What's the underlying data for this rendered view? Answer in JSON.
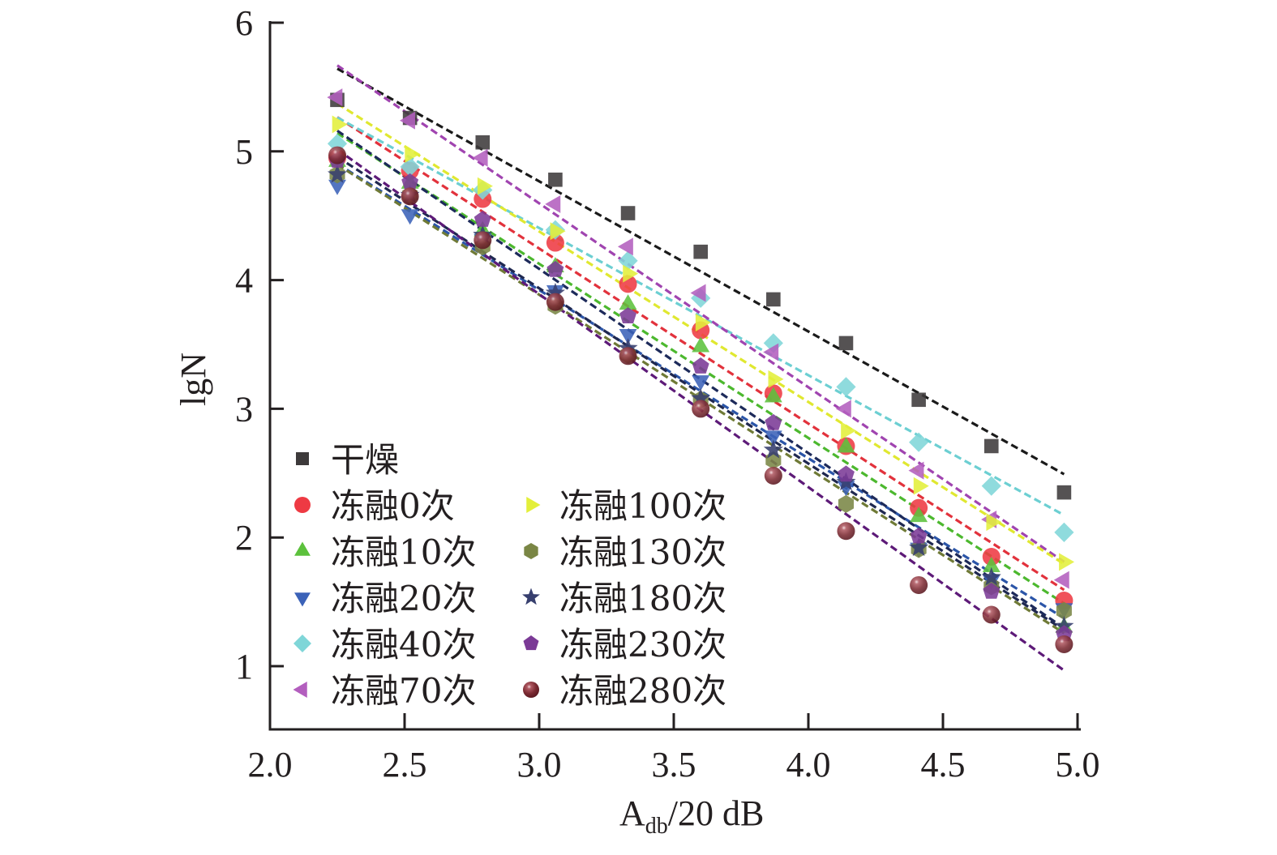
{
  "chart_data": {
    "type": "scatter",
    "title": "",
    "xlabel": "A",
    "xlabel_sub": "db",
    "xlabel_suffix": "/20 dB",
    "ylabel": "lgN",
    "xlim": [
      2.0,
      5.0
    ],
    "ylim": [
      0.5,
      6.0
    ],
    "xticks": [
      "2.0",
      "2.5",
      "3.0",
      "3.5",
      "4.0",
      "4.5",
      "5.0"
    ],
    "xtick_values": [
      2.0,
      2.5,
      3.0,
      3.5,
      4.0,
      4.5,
      5.0
    ],
    "yticks": [
      "1",
      "2",
      "3",
      "4",
      "5",
      "6"
    ],
    "ytick_values": [
      1,
      2,
      3,
      4,
      5,
      6
    ],
    "grid": false,
    "legend_position": "bottom-left",
    "fit_lines": "linear, dashed, one per series",
    "x": [
      2.25,
      2.52,
      2.79,
      3.06,
      3.33,
      3.6,
      3.87,
      4.14,
      4.41,
      4.68,
      4.95
    ],
    "series": [
      {
        "name": "干燥",
        "marker": "square",
        "color": "#3d3a3b",
        "line_color": "#1a1a1a",
        "values": [
          5.4,
          5.26,
          5.07,
          4.78,
          4.52,
          4.22,
          3.85,
          3.51,
          3.07,
          2.71,
          2.35
        ]
      },
      {
        "name": "冻融0次",
        "marker": "circle",
        "color": "#ee3a43",
        "line_color": "#e2323c",
        "values": [
          4.95,
          4.85,
          4.63,
          4.29,
          3.97,
          3.61,
          3.12,
          2.71,
          2.23,
          1.85,
          1.51
        ]
      },
      {
        "name": "冻融10次",
        "marker": "triangle-up",
        "color": "#5cc13c",
        "line_color": "#4cb82e",
        "values": [
          4.92,
          4.75,
          4.38,
          4.1,
          3.81,
          3.48,
          3.09,
          2.7,
          2.16,
          1.77,
          1.3
        ]
      },
      {
        "name": "冻融20次",
        "marker": "triangle-down",
        "color": "#3b62b8",
        "line_color": "#2b55a8",
        "values": [
          4.74,
          4.51,
          4.32,
          3.92,
          3.58,
          3.22,
          2.79,
          2.4,
          1.92,
          1.67,
          1.45
        ]
      },
      {
        "name": "冻融40次",
        "marker": "diamond",
        "color": "#7fd6d8",
        "line_color": "#6ccfd2",
        "values": [
          5.06,
          4.88,
          4.7,
          4.39,
          4.15,
          3.86,
          3.51,
          3.17,
          2.74,
          2.4,
          2.04
        ]
      },
      {
        "name": "冻融70次",
        "marker": "triangle-left",
        "color": "#b35ebe",
        "line_color": "#a044b0",
        "values": [
          5.42,
          5.24,
          4.95,
          4.59,
          4.26,
          3.9,
          3.44,
          3.0,
          2.52,
          2.14,
          1.67
        ]
      },
      {
        "name": "冻融100次",
        "marker": "triangle-right",
        "color": "#e3ef3a",
        "line_color": "#e0e830",
        "values": [
          5.21,
          4.98,
          4.73,
          4.38,
          4.05,
          3.67,
          3.23,
          2.83,
          2.4,
          2.12,
          1.81
        ]
      },
      {
        "name": "冻融130次",
        "marker": "hexagon",
        "color": "#7a8645",
        "line_color": "#6f7a36",
        "values": [
          4.82,
          4.66,
          4.26,
          3.8,
          3.42,
          3.07,
          2.6,
          2.26,
          1.91,
          1.62,
          1.43
        ]
      },
      {
        "name": "冻融180次",
        "marker": "star",
        "color": "#373f6e",
        "line_color": "#1f2850",
        "values": [
          4.82,
          4.66,
          4.35,
          3.9,
          3.47,
          3.08,
          2.68,
          2.43,
          1.92,
          1.69,
          1.31
        ]
      },
      {
        "name": "冻融230次",
        "marker": "pentagon",
        "color": "#7b3a96",
        "line_color": "#1d2a5a",
        "values": [
          4.93,
          4.76,
          4.47,
          4.08,
          3.72,
          3.33,
          2.89,
          2.49,
          2.01,
          1.58,
          1.25
        ]
      },
      {
        "name": "冻融280次",
        "marker": "sphere",
        "color": "#7c2b33",
        "line_color": "#5d1a78",
        "values": [
          4.97,
          4.65,
          4.31,
          3.83,
          3.41,
          3.0,
          2.48,
          2.05,
          1.63,
          1.4,
          1.17
        ]
      }
    ]
  }
}
